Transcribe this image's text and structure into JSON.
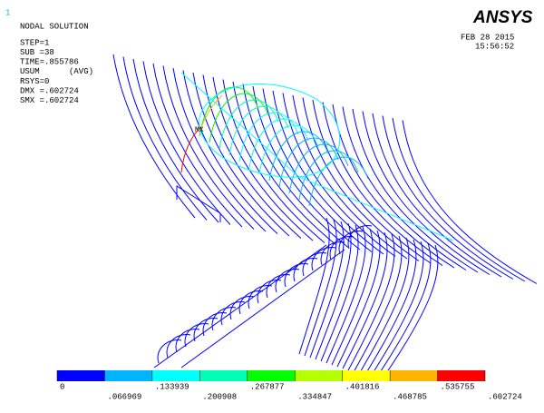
{
  "window_number": "1",
  "header": {
    "title": "NODAL SOLUTION",
    "lines": [
      "STEP=1",
      "SUB =38",
      "TIME=.855786",
      "USUM      (AVG)",
      "RSYS=0",
      "DMX =.602724",
      "SMX =.602724"
    ]
  },
  "logo": "ANSYS",
  "date": "FEB 28 2015",
  "time": "15:56:52",
  "max_marker": "MX",
  "legend": {
    "colors": [
      "#0000ff",
      "#00b4ff",
      "#00ffff",
      "#00ffb4",
      "#00ff00",
      "#b4ff00",
      "#ffff00",
      "#ffb400",
      "#ff0000"
    ],
    "ticks": [
      0,
      {
        "value": 0.066969,
        "label": ".066969"
      },
      {
        "value": 0.133939,
        "label": ".133939"
      },
      {
        "value": 0.200908,
        "label": ".200908"
      },
      {
        "value": 0.267877,
        "label": ".267877"
      },
      {
        "value": 0.334847,
        "label": ".334847"
      },
      {
        "value": 0.401816,
        "label": ".401816"
      },
      {
        "value": 0.468785,
        "label": ".468785"
      },
      {
        "value": 0.535755,
        "label": ".535755"
      },
      {
        "value": 0.602724,
        "label": ".602724"
      }
    ]
  }
}
